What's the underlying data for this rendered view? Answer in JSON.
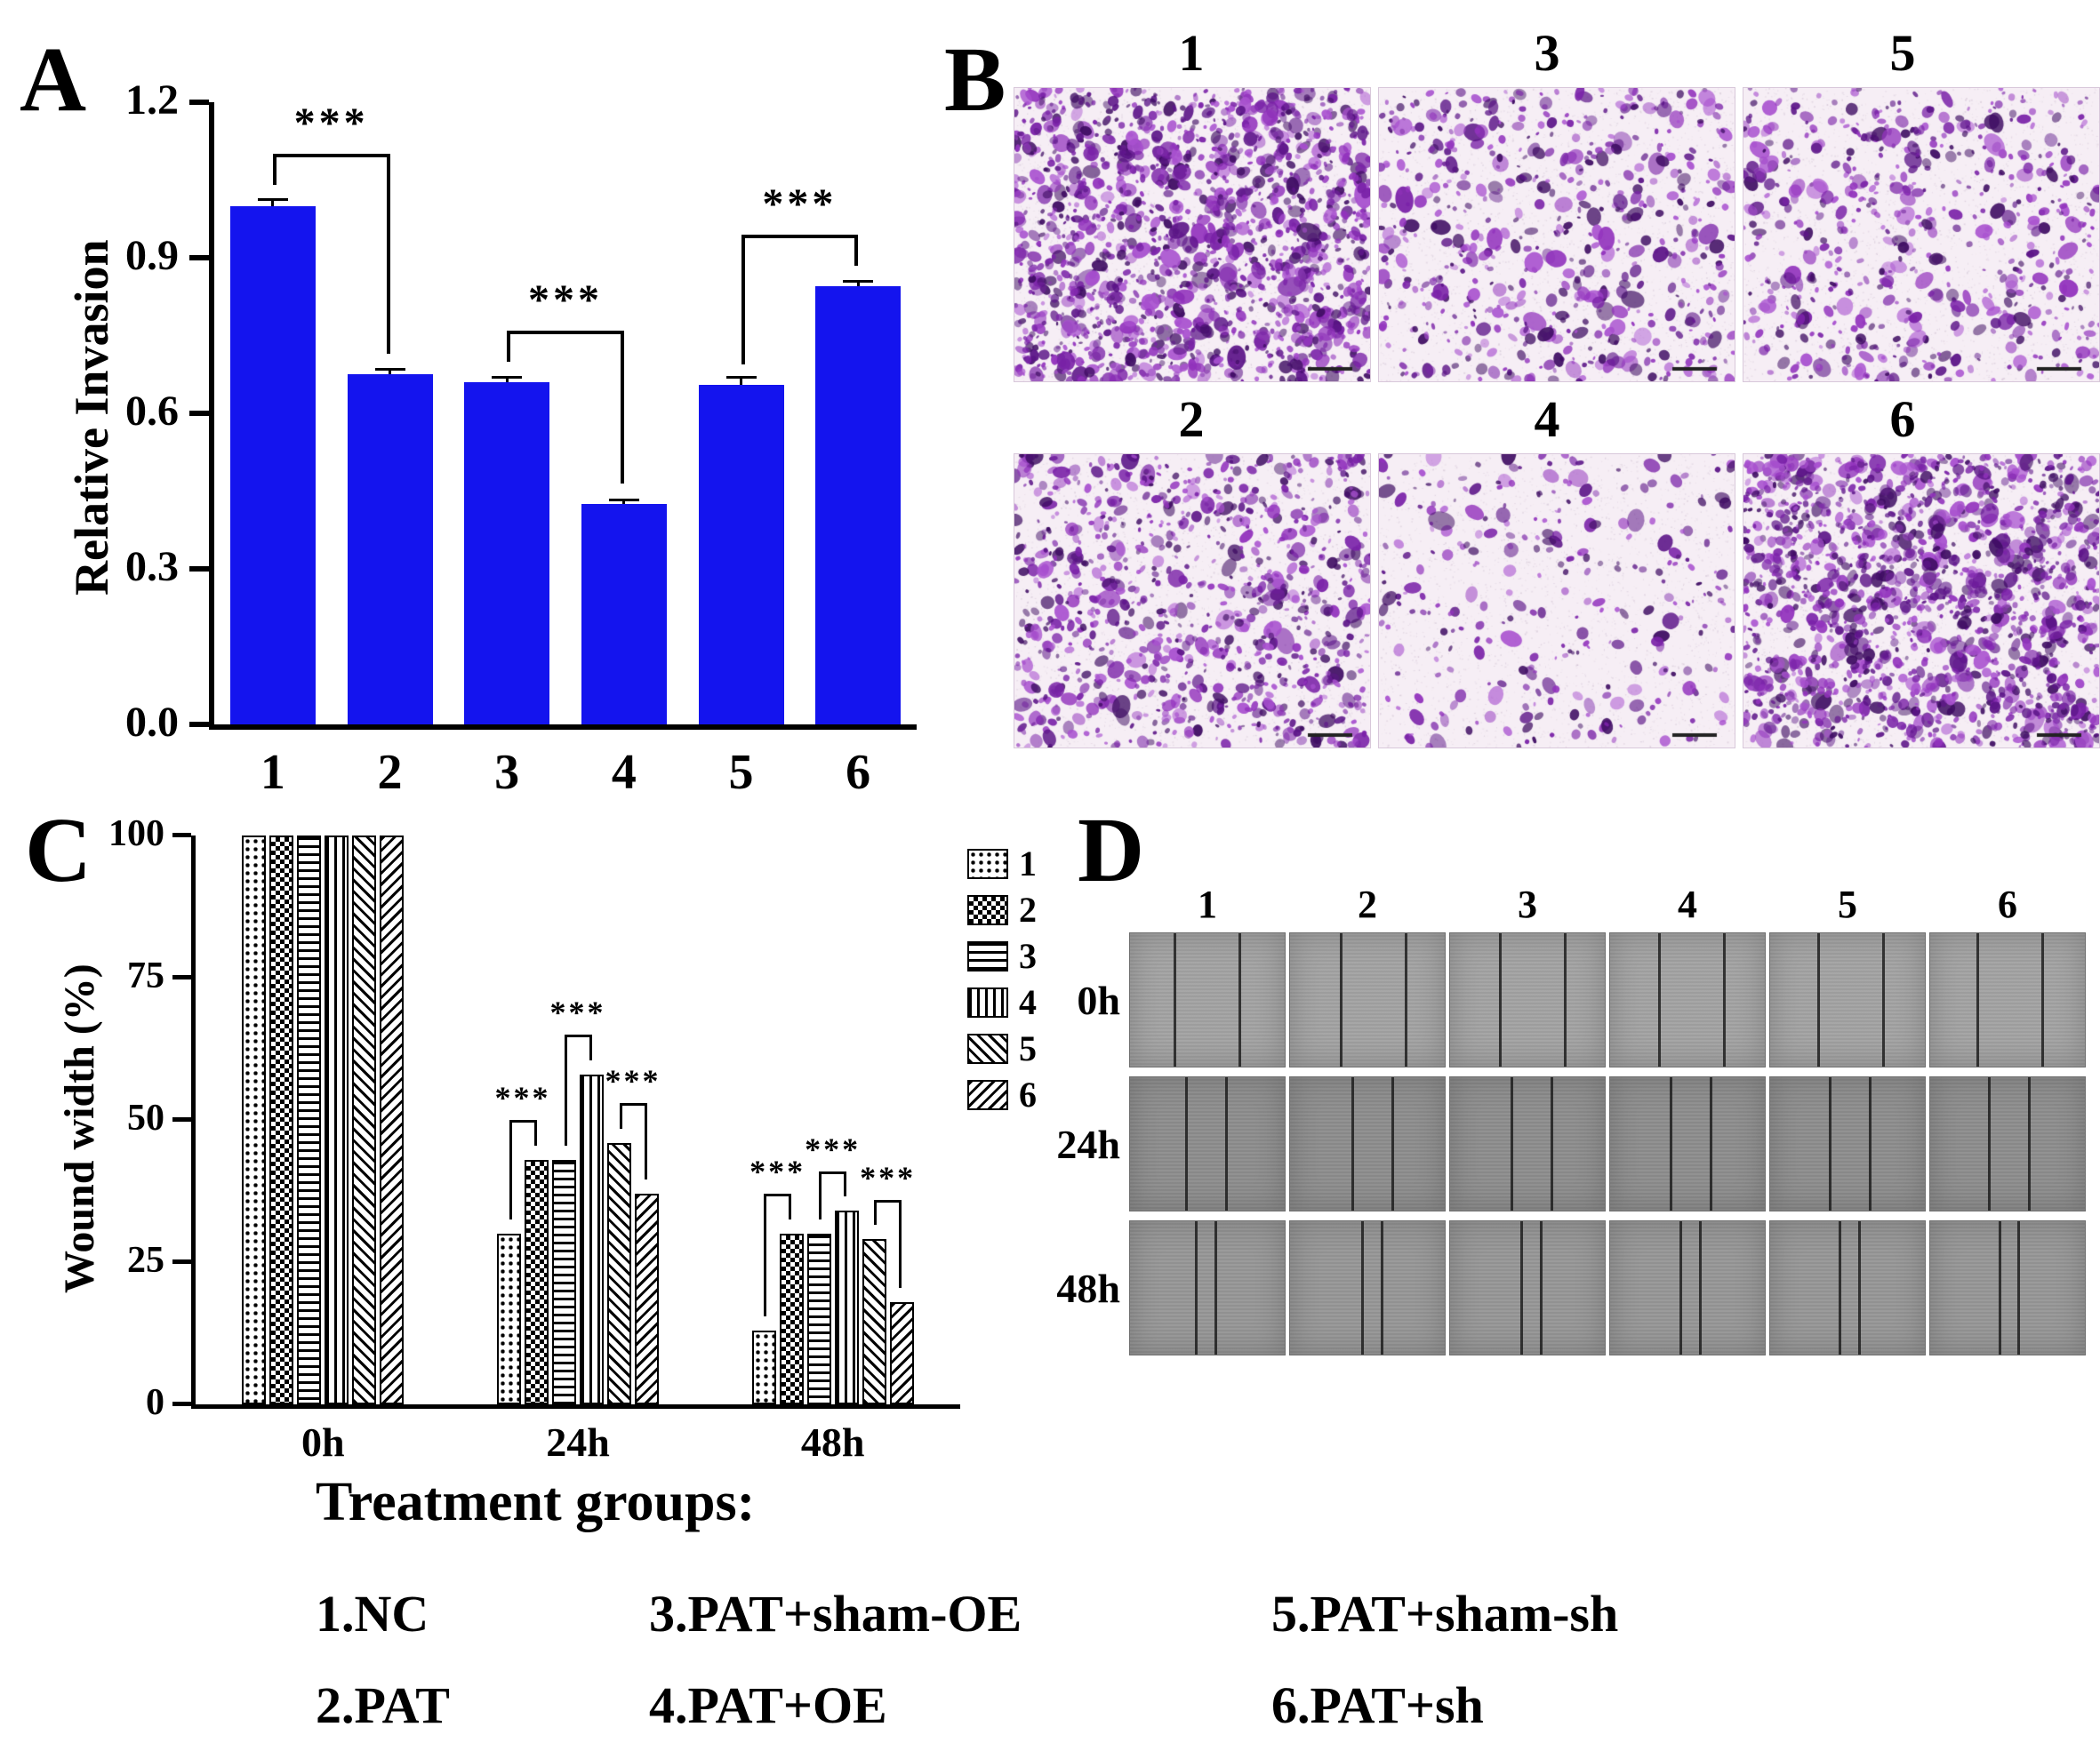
{
  "panels": {
    "a": "A",
    "b": "B",
    "c": "C",
    "d": "D"
  },
  "chart_data": [
    {
      "type": "bar",
      "panel": "A",
      "title": "",
      "xlabel": "",
      "ylabel": "Relative Invasion",
      "categories": [
        "1",
        "2",
        "3",
        "4",
        "5",
        "6"
      ],
      "values": [
        1.0,
        0.675,
        0.66,
        0.425,
        0.655,
        0.845
      ],
      "errors": [
        0.012,
        0.01,
        0.01,
        0.008,
        0.014,
        0.01
      ],
      "ylim": [
        0,
        1.2
      ],
      "yticks": [
        0.0,
        0.3,
        0.6,
        0.9,
        1.2
      ],
      "bar_color": "#1414ee",
      "grid": false,
      "significance": [
        {
          "pair": [
            1,
            2
          ],
          "label": "***"
        },
        {
          "pair": [
            3,
            4
          ],
          "label": "***"
        },
        {
          "pair": [
            5,
            6
          ],
          "label": "***"
        }
      ]
    },
    {
      "type": "bar",
      "panel": "C",
      "title": "",
      "xlabel": "",
      "ylabel": "Wound width (%)",
      "categories": [
        "0h",
        "24h",
        "48h"
      ],
      "series": [
        {
          "name": "1",
          "values": [
            100,
            30,
            13
          ]
        },
        {
          "name": "2",
          "values": [
            100,
            43,
            30
          ]
        },
        {
          "name": "3",
          "values": [
            100,
            43,
            30
          ]
        },
        {
          "name": "4",
          "values": [
            100,
            58,
            34
          ]
        },
        {
          "name": "5",
          "values": [
            100,
            46,
            29
          ]
        },
        {
          "name": "6",
          "values": [
            100,
            37,
            18
          ]
        }
      ],
      "ylim": [
        0,
        100
      ],
      "yticks": [
        0,
        25,
        50,
        75,
        100
      ],
      "legend": [
        "1",
        "2",
        "3",
        "4",
        "5",
        "6"
      ],
      "legend_position": "top-right",
      "grid": false,
      "significance": [
        {
          "group": "24h",
          "pair": [
            1,
            2
          ],
          "label": "***"
        },
        {
          "group": "24h",
          "pair": [
            3,
            4
          ],
          "label": "***"
        },
        {
          "group": "24h",
          "pair": [
            5,
            6
          ],
          "label": "***"
        },
        {
          "group": "48h",
          "pair": [
            1,
            2
          ],
          "label": "***"
        },
        {
          "group": "48h",
          "pair": [
            3,
            4
          ],
          "label": "***"
        },
        {
          "group": "48h",
          "pair": [
            5,
            6
          ],
          "label": "***"
        }
      ]
    }
  ],
  "panel_b": {
    "label": "B",
    "rows": [
      {
        "images": [
          {
            "num": "1",
            "cell_density": "very-high"
          },
          {
            "num": "3",
            "cell_density": "medium"
          },
          {
            "num": "5",
            "cell_density": "medium"
          }
        ]
      },
      {
        "images": [
          {
            "num": "2",
            "cell_density": "high"
          },
          {
            "num": "4",
            "cell_density": "low"
          },
          {
            "num": "6",
            "cell_density": "very-high"
          }
        ]
      }
    ]
  },
  "panel_d": {
    "label": "D",
    "columns": [
      "1",
      "2",
      "3",
      "4",
      "5",
      "6"
    ],
    "rows": [
      "0h",
      "24h",
      "48h"
    ]
  },
  "treatment_groups": {
    "title": "Treatment groups:",
    "row1": [
      "1.NC",
      "3.PAT+sham-OE",
      "5.PAT+sham-sh"
    ],
    "row2": [
      "2.PAT",
      "4.PAT+OE",
      "6.PAT+sh"
    ]
  }
}
